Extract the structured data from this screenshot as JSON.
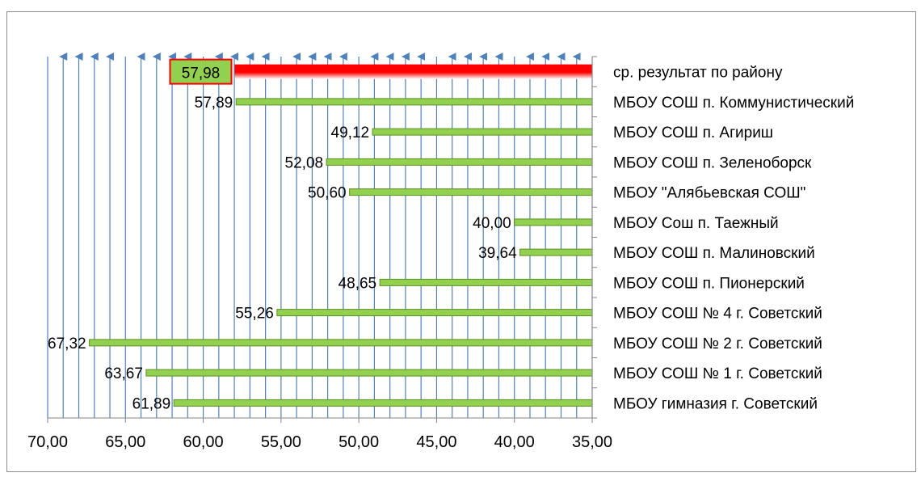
{
  "chart_data": {
    "type": "bar",
    "orientation": "horizontal",
    "x_axis_reversed": true,
    "xlim": [
      35,
      70
    ],
    "x_ticks": [
      "70,00",
      "65,00",
      "60,00",
      "55,00",
      "50,00",
      "45,00",
      "40,00",
      "35,00"
    ],
    "x_tick_values": [
      70,
      65,
      60,
      55,
      50,
      45,
      40,
      35
    ],
    "categories": [
      "ср. результат по району",
      "МБОУ СОШ п. Коммунистический",
      "МБОУ СОШ п. Агириш",
      "МБОУ СОШ п. Зеленоборск",
      "МБОУ \"Алябьевская СОШ\"",
      "МБОУ Сош п. Таежный",
      "МБОУ СОШ п. Малиновский",
      "МБОУ СОШ п. Пионерский",
      "МБОУ СОШ № 4 г. Советский",
      "МБОУ СОШ № 2 г. Советский",
      "МБОУ СОШ № 1 г. Советский",
      "МБОУ гимназия г. Советский"
    ],
    "values": [
      57.98,
      57.89,
      49.12,
      52.08,
      50.6,
      40.0,
      39.64,
      48.65,
      55.26,
      67.32,
      63.67,
      61.89
    ],
    "value_labels": [
      "57,98",
      "57,89",
      "49,12",
      "52,08",
      "50,60",
      "40,00",
      "39,64",
      "48,65",
      "55,26",
      "67,32",
      "63,67",
      "61,89"
    ],
    "highlight_index": 0,
    "colors": {
      "bar": "#92d050",
      "bar_edge": "#5e8f1f",
      "highlight_bar": "#ff0000",
      "highlight_label_fill": "#92d050",
      "highlight_label_border": "#ff0000",
      "gridline": "#4f81bd",
      "axis": "#868686"
    },
    "grid": true,
    "legend": "none"
  }
}
